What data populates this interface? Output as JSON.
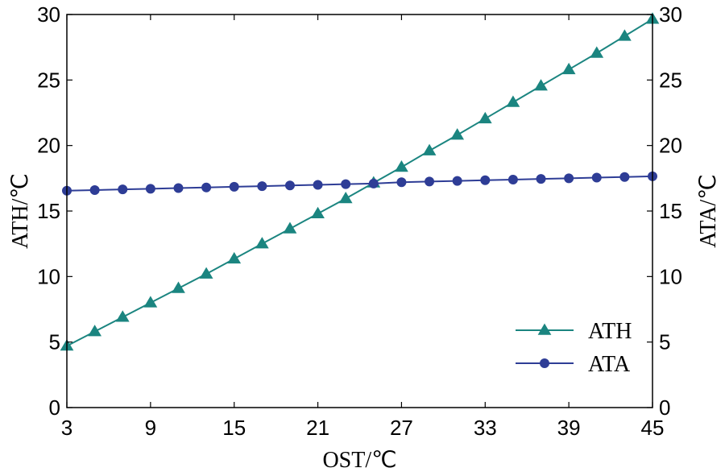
{
  "chart_data": {
    "type": "line",
    "x": [
      3,
      5,
      7,
      9,
      11,
      13,
      15,
      17,
      19,
      21,
      23,
      25,
      27,
      29,
      31,
      33,
      35,
      37,
      39,
      41,
      43,
      45
    ],
    "series": [
      {
        "name": "ATH",
        "axis": "left",
        "color": "#1b8580",
        "marker": "triangle",
        "values": [
          4.7,
          5.8,
          6.9,
          8.0,
          9.1,
          10.2,
          11.35,
          12.5,
          13.65,
          14.8,
          15.95,
          17.15,
          18.35,
          19.6,
          20.8,
          22.05,
          23.3,
          24.55,
          25.8,
          27.05,
          28.35,
          29.65
        ]
      },
      {
        "name": "ATA",
        "axis": "right",
        "color": "#2e3d96",
        "marker": "circle",
        "values": [
          16.55,
          16.6,
          16.65,
          16.7,
          16.75,
          16.8,
          16.85,
          16.9,
          16.95,
          17.0,
          17.05,
          17.1,
          17.2,
          17.25,
          17.3,
          17.35,
          17.4,
          17.45,
          17.5,
          17.55,
          17.6,
          17.65
        ]
      }
    ],
    "xlabel": "OST/℃",
    "ylabel": "ATH/℃",
    "y2label": "ATA/℃",
    "xlim": [
      3,
      45
    ],
    "ylim": [
      0,
      30
    ],
    "y2lim": [
      0,
      30
    ],
    "xticks": [
      "3",
      "9",
      "15",
      "21",
      "27",
      "33",
      "39",
      "45"
    ],
    "yticks": [
      "0",
      "5",
      "10",
      "15",
      "20",
      "25",
      "30"
    ],
    "y2ticks": [
      "0",
      "5",
      "10",
      "15",
      "20",
      "25",
      "30"
    ],
    "grid": false,
    "legend_position": "bottom-right"
  }
}
